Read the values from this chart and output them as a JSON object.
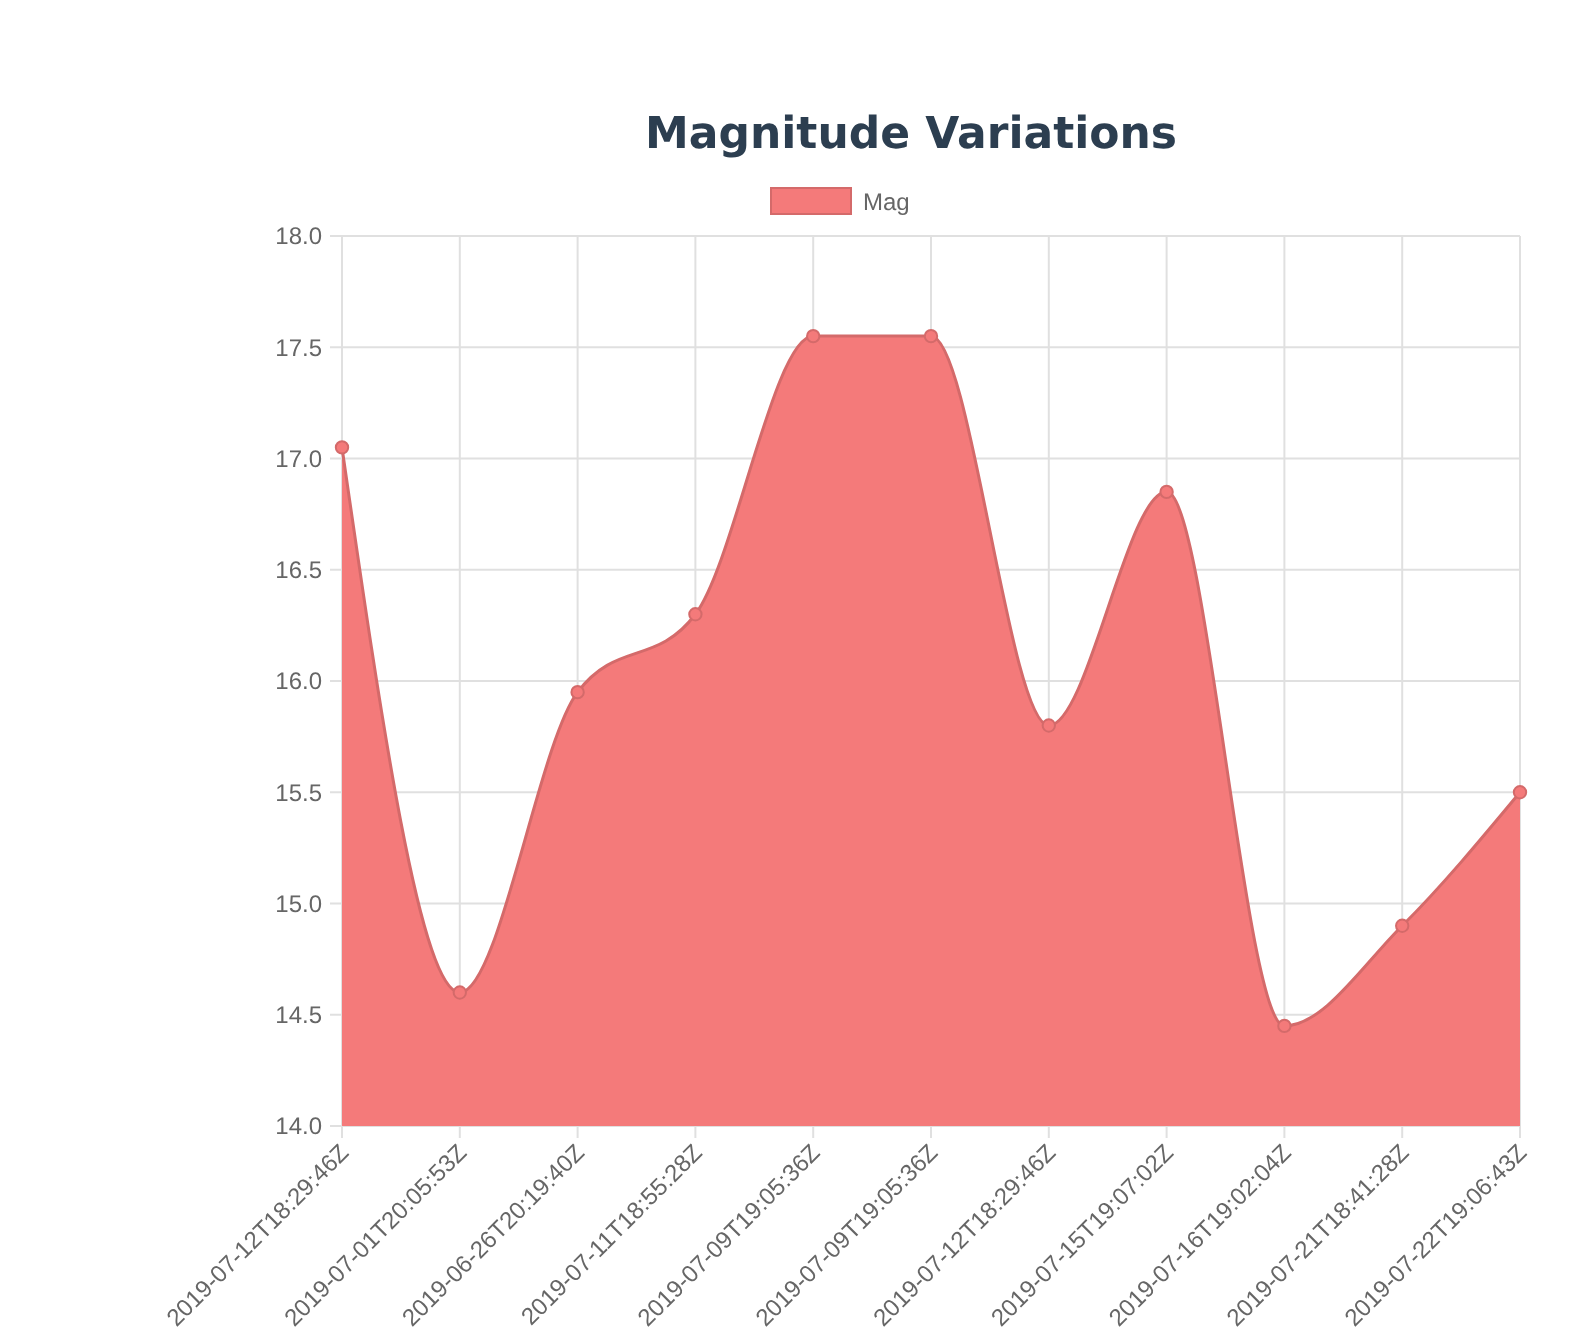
{
  "chart_data": {
    "type": "area",
    "title": "Magnitude Variations",
    "categories": [
      "2019-07-12T18:29:46Z",
      "2019-07-01T20:05:53Z",
      "2019-06-26T20:19:40Z",
      "2019-07-11T18:55:28Z",
      "2019-07-09T19:05:36Z",
      "2019-07-09T19:05:36Z",
      "2019-07-12T18:29:46Z",
      "2019-07-15T19:07:02Z",
      "2019-07-16T19:02:04Z",
      "2019-07-21T18:41:28Z",
      "2019-07-22T19:06:43Z"
    ],
    "series": [
      {
        "name": "Mag",
        "color": "#f47a7a",
        "values": [
          17.05,
          14.6,
          15.95,
          16.3,
          17.55,
          17.55,
          15.8,
          16.85,
          14.45,
          14.9,
          15.5
        ]
      }
    ],
    "ylim": [
      14,
      18
    ],
    "yticks": [
      {
        "value": 14,
        "label": "14.0"
      },
      {
        "value": 14.5,
        "label": "14.5"
      },
      {
        "value": 15,
        "label": "15.0"
      },
      {
        "value": 15.5,
        "label": "15.5"
      },
      {
        "value": 16,
        "label": "16.0"
      },
      {
        "value": 16.5,
        "label": "16.5"
      },
      {
        "value": 17,
        "label": "17.0"
      },
      {
        "value": 17.5,
        "label": "17.5"
      },
      {
        "value": 18,
        "label": "18.0"
      }
    ],
    "grid": true,
    "legend": "top",
    "marker": "circle"
  }
}
